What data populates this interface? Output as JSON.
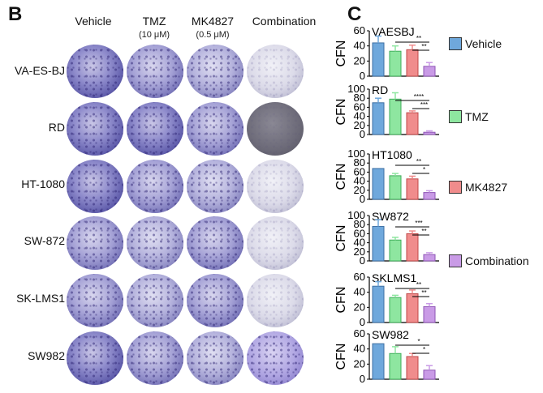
{
  "panel_b": {
    "letter": "B",
    "columns": [
      {
        "title": "Vehicle",
        "sub": ""
      },
      {
        "title": "TMZ",
        "sub": "(10 μM)"
      },
      {
        "title": "MK4827",
        "sub": "(0.5 μM)"
      },
      {
        "title": "Combination",
        "sub": ""
      }
    ],
    "rows": [
      "VA-ES-BJ",
      "RD",
      "HT-1080",
      "SW-872",
      "SK-LMS1",
      "SW982"
    ]
  },
  "panel_c": {
    "letter": "C",
    "legend": [
      "Vehicle",
      "TMZ",
      "MK4827",
      "Combination"
    ]
  },
  "colors": {
    "vehicle": "#6fa8dc",
    "tmz": "#8ee6a0",
    "mk4827": "#f08c8c",
    "combination": "#c99be6"
  },
  "chart_data": [
    {
      "type": "bar",
      "title": "VAESBJ",
      "ylabel": "CFN",
      "categories": [
        "Vehicle",
        "TMZ",
        "MK4827",
        "Combination"
      ],
      "values": [
        44,
        33,
        35,
        13
      ],
      "errors": [
        9,
        7,
        6,
        5
      ],
      "ylim": [
        0,
        60
      ],
      "yticks": [
        "0",
        "20",
        "40",
        "60"
      ],
      "sig": [
        "**",
        "**"
      ]
    },
    {
      "type": "bar",
      "title": "RD",
      "ylabel": "CFN",
      "categories": [
        "Vehicle",
        "TMZ",
        "MK4827",
        "Combination"
      ],
      "values": [
        70,
        78,
        48,
        5
      ],
      "errors": [
        10,
        14,
        4,
        3
      ],
      "ylim": [
        0,
        100
      ],
      "yticks": [
        "0",
        "20",
        "40",
        "60",
        "80",
        "100"
      ],
      "sig": [
        "****",
        "***"
      ]
    },
    {
      "type": "bar",
      "title": "HT1080",
      "ylabel": "CFN",
      "categories": [
        "Vehicle",
        "TMZ",
        "MK4827",
        "Combination"
      ],
      "values": [
        68,
        52,
        45,
        15
      ],
      "errors": [
        0,
        5,
        6,
        4
      ],
      "ylim": [
        0,
        100
      ],
      "yticks": [
        "0",
        "20",
        "40",
        "60",
        "80",
        "100"
      ],
      "sig": [
        "**",
        "*"
      ]
    },
    {
      "type": "bar",
      "title": "SW872",
      "ylabel": "CFN",
      "categories": [
        "Vehicle",
        "TMZ",
        "MK4827",
        "Combination"
      ],
      "values": [
        76,
        46,
        60,
        14
      ],
      "errors": [
        15,
        6,
        6,
        4
      ],
      "ylim": [
        0,
        100
      ],
      "yticks": [
        "0",
        "20",
        "40",
        "60",
        "80",
        "100"
      ],
      "sig": [
        "***",
        "**"
      ]
    },
    {
      "type": "bar",
      "title": "SKLMS1",
      "ylabel": "CFN",
      "categories": [
        "Vehicle",
        "TMZ",
        "MK4827",
        "Combination"
      ],
      "values": [
        48,
        33,
        38,
        21
      ],
      "errors": [
        6,
        3,
        5,
        4
      ],
      "ylim": [
        0,
        60
      ],
      "yticks": [
        "0",
        "20",
        "40",
        "60"
      ],
      "sig": [
        "**",
        "**"
      ]
    },
    {
      "type": "bar",
      "title": "SW982",
      "ylabel": "CFN",
      "categories": [
        "Vehicle",
        "TMZ",
        "MK4827",
        "Combination"
      ],
      "values": [
        47,
        34,
        30,
        12
      ],
      "errors": [
        0,
        9,
        4,
        6
      ],
      "ylim": [
        0,
        60
      ],
      "yticks": [
        "0",
        "20",
        "40",
        "60"
      ],
      "sig": [
        "*",
        "*"
      ]
    }
  ]
}
